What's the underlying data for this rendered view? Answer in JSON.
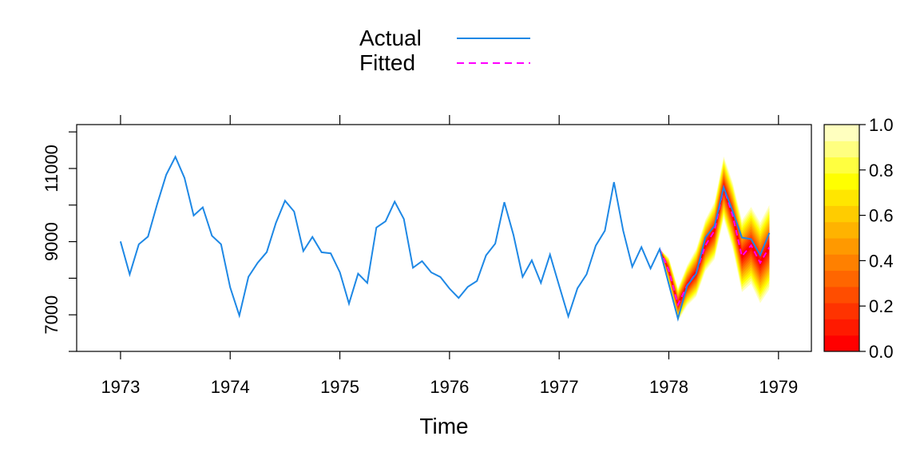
{
  "chart_data": {
    "type": "line",
    "xlabel": "Time",
    "xlim": [
      1972.6,
      1979.3
    ],
    "ylim": [
      6000,
      12200
    ],
    "x_ticks": [
      1973,
      1974,
      1975,
      1976,
      1977,
      1978,
      1979
    ],
    "y_ticks": [
      7000,
      9000,
      11000
    ],
    "legend": {
      "placement": "top-center",
      "entries": [
        {
          "label": "Actual",
          "color": "#1E88E5",
          "style": "solid"
        },
        {
          "label": "Fitted",
          "color": "#FF00FF",
          "style": "dashed"
        }
      ]
    },
    "colorbar": {
      "ticks": [
        "0.0",
        "0.2",
        "0.4",
        "0.6",
        "0.8",
        "1.0"
      ],
      "colors": [
        "#FF0000",
        "#FF1A00",
        "#FF3300",
        "#FF4D00",
        "#FF6600",
        "#FF8000",
        "#FF9900",
        "#FFB300",
        "#FFCC00",
        "#FFE600",
        "#FFFF00",
        "#FFFF40",
        "#FFFF80",
        "#FFFFBF"
      ]
    },
    "series": [
      {
        "name": "Actual",
        "color": "#1E88E5",
        "x_start": 1973,
        "step": 0.0833333,
        "values": [
          9007,
          8106,
          8928,
          9137,
          10017,
          10826,
          11317,
          10744,
          9713,
          9938,
          9161,
          8927,
          7750,
          6981,
          8038,
          8422,
          8714,
          9512,
          10120,
          9823,
          8743,
          9129,
          8710,
          8680,
          8162,
          7306,
          8124,
          7870,
          9387,
          9556,
          10093,
          9620,
          8285,
          8466,
          8160,
          8034,
          7717,
          7461,
          7767,
          7925,
          8623,
          8945,
          10078,
          9179,
          8037,
          8488,
          7874,
          8647,
          7792,
          6957,
          7726,
          8106,
          8890,
          9299,
          10625,
          9302,
          8314,
          8850,
          8265,
          8796,
          7836,
          6892,
          7791,
          8129,
          9115,
          9434,
          10484,
          9827,
          9110,
          9070,
          8633,
          9240
        ]
      },
      {
        "name": "Fitted",
        "color": "#FF00FF",
        "x_start": 1977.9167,
        "step": 0.0833333,
        "values": [
          8796,
          8210,
          7280,
          7800,
          8150,
          8900,
          9300,
          10480,
          9700,
          8600,
          8900,
          8420,
          8850
        ]
      }
    ],
    "forecast_band": {
      "x_start": 1977.9167,
      "step": 0.0833333,
      "center": [
        8796,
        8210,
        7280,
        7800,
        8150,
        8900,
        9300,
        10480,
        9700,
        8600,
        8900,
        8420,
        8850
      ],
      "halfwidth": [
        0,
        350,
        450,
        550,
        650,
        700,
        780,
        850,
        900,
        980,
        1050,
        1100,
        1150
      ]
    }
  }
}
